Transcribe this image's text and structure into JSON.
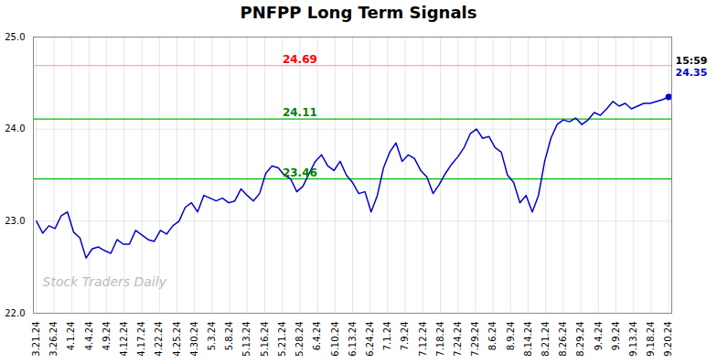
{
  "chart_data": {
    "type": "line",
    "title": "PNFPP Long Term Signals",
    "xlim": [
      -0.5,
      102.5
    ],
    "xticks": [
      {
        "value": 0,
        "label": "3.21.24"
      },
      {
        "value": 2.8333,
        "label": "3.26.24"
      },
      {
        "value": 5.6667,
        "label": "4.1.24"
      },
      {
        "value": 8.5,
        "label": "4.4.24"
      },
      {
        "value": 11.3333,
        "label": "4.9.24"
      },
      {
        "value": 14.1667,
        "label": "4.12.24"
      },
      {
        "value": 17,
        "label": "4.17.24"
      },
      {
        "value": 19.8333,
        "label": "4.22.24"
      },
      {
        "value": 22.6667,
        "label": "4.25.24"
      },
      {
        "value": 25.5,
        "label": "4.30.24"
      },
      {
        "value": 28.3333,
        "label": "5.3.24"
      },
      {
        "value": 31.1667,
        "label": "5.8.24"
      },
      {
        "value": 34,
        "label": "5.13.24"
      },
      {
        "value": 36.8333,
        "label": "5.16.24"
      },
      {
        "value": 39.6667,
        "label": "5.21.24"
      },
      {
        "value": 42.5,
        "label": "5.28.24"
      },
      {
        "value": 45.3333,
        "label": "6.4.24"
      },
      {
        "value": 48.1667,
        "label": "6.10.24"
      },
      {
        "value": 51,
        "label": "6.13.24"
      },
      {
        "value": 53.8333,
        "label": "6.24.24"
      },
      {
        "value": 56.6667,
        "label": "7.1.24"
      },
      {
        "value": 59.5,
        "label": "7.9.24"
      },
      {
        "value": 62.3333,
        "label": "7.12.24"
      },
      {
        "value": 65.1667,
        "label": "7.18.24"
      },
      {
        "value": 68,
        "label": "7.24.24"
      },
      {
        "value": 70.8333,
        "label": "7.29.24"
      },
      {
        "value": 73.6667,
        "label": "8.6.24"
      },
      {
        "value": 76.5,
        "label": "8.9.24"
      },
      {
        "value": 79.3333,
        "label": "8.14.24"
      },
      {
        "value": 82.1667,
        "label": "8.21.24"
      },
      {
        "value": 85,
        "label": "8.26.24"
      },
      {
        "value": 87.8333,
        "label": "8.29.24"
      },
      {
        "value": 90.6667,
        "label": "9.4.24"
      },
      {
        "value": 93.5,
        "label": "9.9.24"
      },
      {
        "value": 96.3333,
        "label": "9.13.24"
      },
      {
        "value": 99.1667,
        "label": "9.18.24"
      },
      {
        "value": 102,
        "label": "9.20.24"
      }
    ],
    "ylim": [
      22,
      25
    ],
    "yticks": [
      22,
      23,
      24,
      25
    ],
    "grid": true,
    "color": "#0000cc",
    "values": [
      23.0,
      22.87,
      22.95,
      22.92,
      23.06,
      23.1,
      22.88,
      22.82,
      22.6,
      22.7,
      22.72,
      22.68,
      22.65,
      22.8,
      22.75,
      22.75,
      22.9,
      22.85,
      22.8,
      22.78,
      22.9,
      22.86,
      22.95,
      23.0,
      23.15,
      23.2,
      23.1,
      23.28,
      23.25,
      23.22,
      23.25,
      23.2,
      23.22,
      23.35,
      23.28,
      23.22,
      23.3,
      23.52,
      23.6,
      23.58,
      23.5,
      23.46,
      23.32,
      23.38,
      23.52,
      23.65,
      23.72,
      23.6,
      23.55,
      23.65,
      23.5,
      23.42,
      23.3,
      23.32,
      23.1,
      23.28,
      23.58,
      23.75,
      23.85,
      23.65,
      23.72,
      23.68,
      23.55,
      23.48,
      23.3,
      23.4,
      23.52,
      23.62,
      23.7,
      23.8,
      23.95,
      24.0,
      23.9,
      23.92,
      23.8,
      23.75,
      23.5,
      23.42,
      23.2,
      23.28,
      23.1,
      23.28,
      23.65,
      23.9,
      24.05,
      24.1,
      24.08,
      24.12,
      24.05,
      24.1,
      24.18,
      24.15,
      24.22,
      24.3,
      24.25,
      24.28,
      24.22,
      24.25,
      24.28,
      24.28,
      24.3,
      24.32,
      24.35
    ],
    "reference_lines": [
      {
        "value": 24.69,
        "label": "24.69",
        "color": "#ffaaaa",
        "label_color": "red"
      },
      {
        "value": 24.11,
        "label": "24.11",
        "color": "#00bb00",
        "label_color": "green"
      },
      {
        "value": 23.46,
        "label": "23.46",
        "color": "#00bb00",
        "label_color": "green"
      }
    ],
    "annotations": [
      {
        "text": "15:59",
        "color": "black"
      },
      {
        "text": "24.35",
        "color": "#0000cc"
      }
    ],
    "watermark": {
      "text": "Stock Traders Daily",
      "color": "#bbbbbb"
    }
  }
}
